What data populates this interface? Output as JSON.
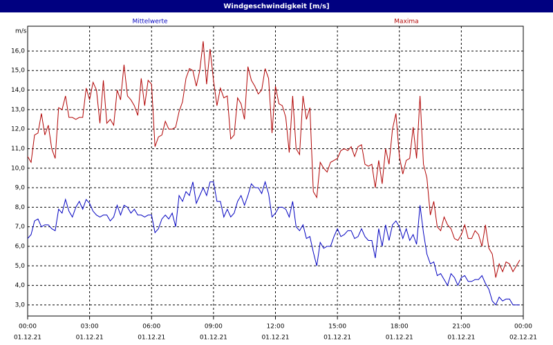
{
  "chart_data": {
    "type": "line",
    "title": "Windgeschwindigkeit [m/s]",
    "y_label": "m/s",
    "x": [
      0,
      10,
      20,
      30,
      40,
      50,
      60,
      70,
      80,
      90,
      100,
      110,
      120,
      130,
      140,
      150,
      160,
      170,
      180,
      190,
      200,
      210,
      220,
      230,
      240,
      250,
      260,
      270,
      280,
      290,
      300,
      310,
      320,
      330,
      340,
      350,
      360,
      370,
      380,
      390,
      400,
      410,
      420,
      430,
      440,
      450,
      460,
      470,
      480,
      490,
      500,
      510,
      520,
      530,
      540,
      550,
      560,
      570,
      580,
      590,
      600,
      610,
      620,
      630,
      640,
      650,
      660,
      670,
      680,
      690,
      700,
      710,
      720,
      730,
      740,
      750,
      760,
      770,
      780,
      790,
      800,
      810,
      820,
      830,
      840,
      850,
      860,
      870,
      880,
      890,
      900,
      910,
      920,
      930,
      940,
      950,
      960,
      970,
      980,
      990,
      1000,
      1010,
      1020,
      1030,
      1040,
      1050,
      1060,
      1070,
      1080,
      1090,
      1100,
      1110,
      1120,
      1130,
      1140,
      1150,
      1160,
      1170,
      1180,
      1190,
      1200,
      1210,
      1220,
      1230,
      1240,
      1250,
      1260,
      1270,
      1280,
      1290,
      1300,
      1310,
      1320,
      1330,
      1340,
      1350,
      1360,
      1370,
      1380,
      1390,
      1400,
      1410,
      1420,
      1430
    ],
    "series": [
      {
        "name": "Mittelwerte",
        "color": "#0000c0",
        "values": [
          6.4,
          6.6,
          7.3,
          7.4,
          7.0,
          7.1,
          7.1,
          6.9,
          6.8,
          7.9,
          7.7,
          8.4,
          7.8,
          7.5,
          8.0,
          8.3,
          7.9,
          8.4,
          8.2,
          7.8,
          7.6,
          7.5,
          7.6,
          7.6,
          7.3,
          7.5,
          8.1,
          7.6,
          8.1,
          8.0,
          7.7,
          7.9,
          7.6,
          7.6,
          7.5,
          7.6,
          7.6,
          6.7,
          6.9,
          7.4,
          7.6,
          7.4,
          7.7,
          7.0,
          8.6,
          8.3,
          8.8,
          8.6,
          9.3,
          8.2,
          8.6,
          9.0,
          8.6,
          9.3,
          9.3,
          8.3,
          8.3,
          7.5,
          7.9,
          7.5,
          7.7,
          8.3,
          8.6,
          8.1,
          8.6,
          9.2,
          9.0,
          9.0,
          8.7,
          9.3,
          8.7,
          7.5,
          7.7,
          8.0,
          8.0,
          7.9,
          7.5,
          8.3,
          7.0,
          6.8,
          7.1,
          6.4,
          6.5,
          5.7,
          5.0,
          6.2,
          5.9,
          6.0,
          6.0,
          6.5,
          6.9,
          6.5,
          6.6,
          6.8,
          6.8,
          6.4,
          6.5,
          6.9,
          6.5,
          6.3,
          6.3,
          5.4,
          6.9,
          6.0,
          7.1,
          6.3,
          7.1,
          7.3,
          7.0,
          6.4,
          6.9,
          6.3,
          6.6,
          6.1,
          8.1,
          6.7,
          5.6,
          5.1,
          5.2,
          4.5,
          4.6,
          4.3,
          4.0,
          4.6,
          4.4,
          4.0,
          4.4,
          4.5,
          4.2,
          4.2,
          4.3,
          4.3,
          4.5,
          4.1,
          3.8,
          3.2,
          3.0,
          3.4,
          3.2,
          3.3,
          3.3,
          3.0,
          3.0,
          3.0
        ]
      },
      {
        "name": "Maxima",
        "color": "#b00000",
        "values": [
          10.6,
          10.3,
          11.7,
          11.8,
          12.8,
          11.7,
          12.2,
          11.0,
          10.5,
          13.1,
          13.0,
          13.7,
          12.6,
          12.6,
          12.5,
          12.6,
          12.6,
          14.1,
          13.5,
          14.4,
          14.0,
          12.3,
          14.5,
          12.3,
          12.5,
          12.2,
          14.0,
          13.5,
          15.3,
          13.7,
          13.5,
          13.2,
          12.7,
          14.6,
          13.2,
          14.5,
          14.3,
          11.1,
          11.6,
          11.7,
          12.4,
          12.0,
          12.0,
          12.1,
          12.9,
          13.4,
          14.6,
          15.1,
          15.0,
          14.2,
          15.0,
          16.5,
          14.3,
          16.1,
          14.5,
          13.2,
          14.1,
          13.6,
          13.7,
          11.5,
          11.7,
          13.6,
          13.3,
          12.5,
          15.2,
          14.5,
          14.2,
          13.8,
          14.0,
          15.1,
          14.6,
          11.8,
          14.2,
          13.3,
          13.2,
          12.6,
          10.8,
          13.7,
          11.0,
          10.7,
          13.7,
          12.5,
          13.1,
          8.8,
          8.5,
          10.3,
          10.0,
          9.8,
          10.3,
          10.4,
          10.5,
          10.9,
          11.0,
          10.9,
          11.1,
          10.6,
          11.1,
          11.2,
          10.2,
          10.1,
          10.2,
          9.0,
          10.4,
          9.2,
          11.0,
          10.2,
          12.0,
          12.8,
          10.6,
          9.7,
          10.4,
          10.5,
          12.1,
          10.5,
          13.7,
          10.2,
          9.5,
          7.6,
          8.3,
          7.0,
          6.8,
          7.5,
          7.1,
          6.9,
          6.4,
          6.3,
          6.6,
          7.1,
          6.4,
          6.4,
          6.8,
          6.6,
          6.0,
          7.1,
          5.9,
          5.6,
          4.4,
          5.1,
          4.7,
          5.2,
          5.1,
          4.7,
          5.0,
          5.3
        ]
      }
    ],
    "xlim": [
      0,
      1440
    ],
    "xticks": [
      {
        "value": 0,
        "label": "00:00",
        "date": "01.12.21"
      },
      {
        "value": 180,
        "label": "03:00",
        "date": "01.12.21"
      },
      {
        "value": 360,
        "label": "06:00",
        "date": "01.12.21"
      },
      {
        "value": 540,
        "label": "09:00",
        "date": "01.12.21"
      },
      {
        "value": 720,
        "label": "12:00",
        "date": "01.12.21"
      },
      {
        "value": 900,
        "label": "15:00",
        "date": "01.12.21"
      },
      {
        "value": 1080,
        "label": "18:00",
        "date": "01.12.21"
      },
      {
        "value": 1260,
        "label": "21:00",
        "date": "01.12.21"
      },
      {
        "value": 1440,
        "label": "00:00",
        "date": "02.12.21"
      }
    ],
    "ylim": [
      2.43,
      17.27
    ],
    "yticks": [
      {
        "value": 3,
        "label": "3,0"
      },
      {
        "value": 4,
        "label": "4,0"
      },
      {
        "value": 5,
        "label": "5,0"
      },
      {
        "value": 6,
        "label": "6,0"
      },
      {
        "value": 7,
        "label": "7,0"
      },
      {
        "value": 8,
        "label": "8,0"
      },
      {
        "value": 9,
        "label": "9,0"
      },
      {
        "value": 10,
        "label": "10,0"
      },
      {
        "value": 11,
        "label": "11,0"
      },
      {
        "value": 12,
        "label": "12,0"
      },
      {
        "value": 13,
        "label": "13,0"
      },
      {
        "value": 14,
        "label": "14,0"
      },
      {
        "value": 15,
        "label": "15,0"
      },
      {
        "value": 16,
        "label": "16,0"
      }
    ],
    "grid": true
  }
}
